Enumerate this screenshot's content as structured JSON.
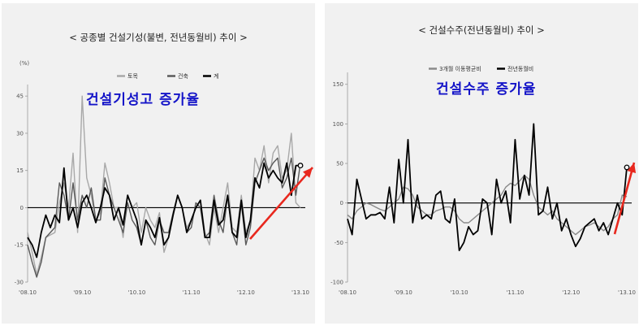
{
  "chart_data": [
    {
      "type": "line",
      "title": "< 공종별 건설기성(불변, 전년동월비) 추이 >",
      "ylabel": "(%)",
      "ylim": [
        -30,
        48
      ],
      "yticks": [
        45,
        30,
        15,
        0,
        -15,
        -30
      ],
      "xlabel": "",
      "x_tick_labels": [
        "'08.10",
        "'09.10",
        "'10.10",
        "'11.10",
        "'12.10",
        "'13.10"
      ],
      "x_tick_index": [
        0,
        12,
        24,
        36,
        48,
        60
      ],
      "annotation": "건설기성고 증가율",
      "annotation_color": "#1414c8",
      "arrow_color": "#e8281e",
      "series": [
        {
          "name": "토목",
          "color": "#a8a8a8",
          "values": [
            -10,
            -18,
            -27,
            -20,
            -12,
            -11,
            -10,
            2,
            10,
            0,
            22,
            -10,
            45,
            12,
            5,
            -5,
            -2,
            18,
            10,
            0,
            0,
            -12,
            5,
            0,
            2,
            -10,
            0,
            -5,
            -8,
            -2,
            -18,
            -12,
            -3,
            5,
            0,
            -8,
            -5,
            0,
            3,
            -10,
            -15,
            0,
            -10,
            0,
            10,
            -8,
            -10,
            5,
            -10,
            -5,
            20,
            15,
            25,
            10,
            22,
            25,
            12,
            15,
            30,
            2,
            0
          ]
        },
        {
          "name": "건축",
          "color": "#5a5a5a",
          "values": [
            -15,
            -22,
            -28,
            -22,
            -12,
            -10,
            -8,
            10,
            5,
            -5,
            10,
            -5,
            5,
            0,
            8,
            -5,
            -5,
            12,
            5,
            0,
            -5,
            -10,
            2,
            -5,
            -8,
            -15,
            -5,
            -12,
            -15,
            -5,
            -10,
            -10,
            -2,
            5,
            0,
            -10,
            -8,
            2,
            0,
            -12,
            -10,
            5,
            -5,
            -10,
            5,
            -10,
            -15,
            2,
            -15,
            -8,
            10,
            15,
            20,
            15,
            18,
            20,
            8,
            12,
            20,
            5,
            18
          ]
        },
        {
          "name": "계",
          "color": "#000000",
          "values": [
            -12,
            -15,
            -20,
            -10,
            -3,
            -8,
            -3,
            -6,
            16,
            -5,
            0,
            -8,
            2,
            5,
            0,
            -6,
            0,
            8,
            5,
            -5,
            0,
            -7,
            5,
            0,
            -5,
            -15,
            -5,
            -8,
            -12,
            -4,
            -15,
            -12,
            -3,
            5,
            0,
            -10,
            -5,
            0,
            3,
            -12,
            -12,
            3,
            -7,
            -5,
            5,
            -10,
            -12,
            3,
            -12,
            -5,
            12,
            8,
            18,
            12,
            15,
            12,
            10,
            18,
            5,
            17,
            17
          ]
        }
      ]
    },
    {
      "type": "line",
      "title": "< 건설수주(전년동월비) 추이 >",
      "ylabel": "",
      "ylim": [
        -100,
        160
      ],
      "yticks": [
        150,
        100,
        50,
        0,
        -50,
        -100
      ],
      "xlabel": "",
      "x_tick_labels": [
        "'08.10",
        "'09.10",
        "'10.10",
        "'11.10",
        "'12.10",
        "'13.10"
      ],
      "x_tick_index": [
        0,
        12,
        24,
        36,
        48,
        60
      ],
      "annotation": "건설수주 증가율",
      "annotation_color": "#1414c8",
      "arrow_color": "#e8281e",
      "series": [
        {
          "name": "3개월 이동평균비",
          "color": "#8a8a8a",
          "values": [
            -15,
            -20,
            -10,
            -5,
            0,
            -2,
            -5,
            -8,
            -10,
            -5,
            0,
            5,
            20,
            18,
            10,
            -5,
            -10,
            -15,
            -15,
            -10,
            -8,
            -5,
            -5,
            -10,
            -20,
            -25,
            -25,
            -20,
            -15,
            -10,
            -5,
            0,
            5,
            10,
            20,
            25,
            22,
            28,
            35,
            30,
            10,
            -5,
            -10,
            -15,
            -10,
            -20,
            -25,
            -30,
            -35,
            -40,
            -35,
            -30,
            -28,
            -25,
            -30,
            -35,
            -30,
            -20,
            -15,
            10,
            8
          ]
        },
        {
          "name": "전년동월비",
          "color": "#000000",
          "values": [
            -20,
            -40,
            30,
            5,
            -20,
            -15,
            -15,
            -12,
            -20,
            20,
            -25,
            55,
            0,
            80,
            -25,
            10,
            -20,
            -15,
            -20,
            10,
            15,
            -20,
            -25,
            5,
            -60,
            -50,
            -30,
            -40,
            -35,
            5,
            0,
            -40,
            30,
            0,
            15,
            -25,
            80,
            5,
            35,
            10,
            100,
            -15,
            -10,
            20,
            -20,
            0,
            -35,
            -20,
            -40,
            -55,
            -45,
            -30,
            -25,
            -20,
            -35,
            -25,
            -40,
            -20,
            0,
            -15,
            45
          ]
        }
      ]
    }
  ]
}
